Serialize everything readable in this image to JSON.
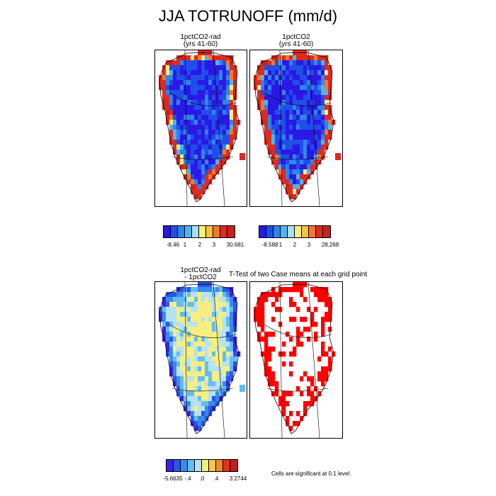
{
  "title": "JJA TOTRUNOFF (mm/d)",
  "panels": {
    "p1": {
      "line1": "1pctCO2-rad",
      "line2": "(yrs 41-60)"
    },
    "p2": {
      "line1": "1pctCO2",
      "line2": "(yrs 41-60)"
    },
    "p3": {
      "line1": "1pctCO2-rad",
      "line2": "- 1pctCO2"
    },
    "p4": {
      "line1": "T-Test of two Case means at each grid point"
    }
  },
  "colorbars": {
    "cb1": {
      "labels": [
        "-8.46",
        "1",
        "2",
        "3",
        "30.681"
      ]
    },
    "cb2": {
      "labels": [
        "-8.588",
        "1",
        "2",
        "3",
        "28.268"
      ]
    },
    "cb3": {
      "labels": [
        "-5.6635",
        "-.4",
        ".0",
        ".4",
        "3.2744"
      ]
    }
  },
  "palette_abs": [
    "#2b18e6",
    "#1f4fe8",
    "#2f86ea",
    "#52b3f2",
    "#a9dff5",
    "#f6f07a",
    "#f7c142",
    "#f07a2a",
    "#e02a1f",
    "#c3241d"
  ],
  "palette_diff": [
    "#3a22e0",
    "#2b56e6",
    "#3a8be8",
    "#63bdf0",
    "#b6e2f4",
    "#f6ef80",
    "#f6c44a",
    "#ef8730",
    "#e3321f",
    "#bf211c"
  ],
  "significance_color": "#ff0000",
  "footnote": "Cells are significant at 0.1 level"
}
